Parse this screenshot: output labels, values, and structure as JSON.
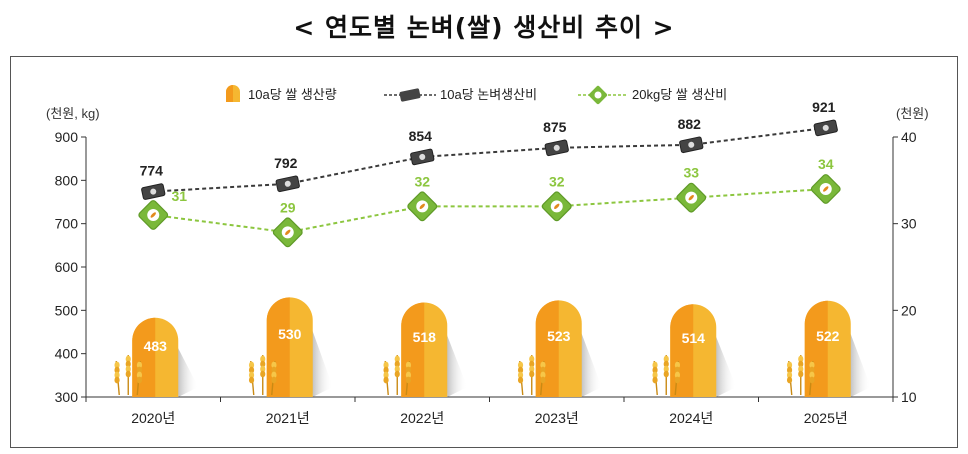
{
  "title": "< 연도별 논벼(쌀) 생산비 추이 >",
  "chart_data": {
    "type": "bar+line",
    "title": "< 연도별 논벼(쌀) 생산비 추이 >",
    "categories": [
      "2020년",
      "2021년",
      "2022년",
      "2023년",
      "2024년",
      "2025년"
    ],
    "left_axis": {
      "unit_label": "(천원, kg)",
      "ylim": [
        300,
        900
      ],
      "ticks": [
        900,
        800,
        700,
        600,
        500,
        400,
        300
      ]
    },
    "right_axis": {
      "unit_label": "(천원)",
      "ylim": [
        10,
        40
      ],
      "ticks": [
        40,
        30,
        20,
        10
      ]
    },
    "series": [
      {
        "name": "10a당 쌀 생산량",
        "kind": "bar",
        "axis": "left",
        "values": [
          483,
          530,
          518,
          523,
          514,
          522
        ],
        "color": "#f7a823"
      },
      {
        "name": "10a당 논벼생산비",
        "kind": "line",
        "axis": "left",
        "values": [
          774,
          792,
          854,
          875,
          882,
          921
        ],
        "color": "#3a3a3a"
      },
      {
        "name": "20kg당 쌀 생산비",
        "kind": "line",
        "axis": "right",
        "values": [
          31,
          29,
          32,
          32,
          33,
          34
        ],
        "color": "#8cc63f"
      }
    ],
    "legend": [
      "10a당 쌀 생산량",
      "10a당 논벼생산비",
      "20kg당 쌀 생산비"
    ],
    "legend_position": "top-center"
  }
}
